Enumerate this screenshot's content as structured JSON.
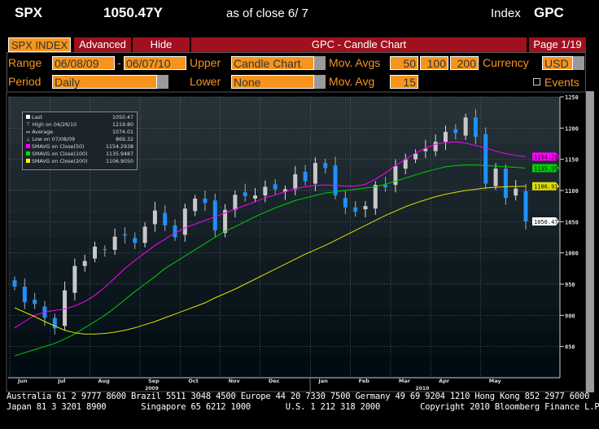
{
  "header": {
    "ticker": "SPX",
    "price": "1050.47Y",
    "as_of": "as of close  6/ 7",
    "index_label": "Index",
    "function": "GPC"
  },
  "tabs": {
    "security": "SPX INDEX",
    "advanced": "Advanced",
    "hide": "Hide",
    "title": "GPC - Candle Chart",
    "page": "Page 1/19"
  },
  "controls": {
    "range_label": "Range",
    "range_start": "06/08/09",
    "range_sep": "-",
    "range_end": "06/07/10",
    "upper_label": "Upper",
    "upper_value": "Candle Chart",
    "mov_avgs_label": "Mov. Avgs",
    "ma1": "50",
    "ma2": "100",
    "ma3": "200",
    "currency_label": "Currency",
    "currency_value": "USD",
    "period_label": "Period",
    "period_value": "Daily",
    "lower_label": "Lower",
    "lower_value": "None",
    "mov_avg_label": "Mov. Avg",
    "mov_avg_value": "15",
    "events_label": "Events"
  },
  "legend": [
    {
      "label": "Last",
      "value": "1050.47",
      "color": "#ffffff"
    },
    {
      "label": "High on 04/26/10",
      "value": "1219.80"
    },
    {
      "label": "Average",
      "value": "1074.01"
    },
    {
      "label": "Low on 07/08/09",
      "value": "869.32"
    },
    {
      "label": "SMAVG on Close(50)",
      "value": "1154.2938",
      "color": "#ff00ff"
    },
    {
      "label": "SMAVG on Close(100)",
      "value": "1135.9487",
      "color": "#00e000"
    },
    {
      "label": "SMAVG on Close(200)",
      "value": "1106.9050",
      "color": "#ffff00"
    }
  ],
  "chart_data": {
    "type": "candlestick",
    "ylim": [
      800,
      1250
    ],
    "yticks": [
      850,
      900,
      950,
      1000,
      1050,
      1100,
      1150,
      1200,
      1250
    ],
    "months": [
      "Jun",
      "Jul",
      "Aug",
      "Sep",
      "Oct",
      "Nov",
      "Dec",
      "Jan",
      "Feb",
      "Mar",
      "Apr",
      "May"
    ],
    "month_week_index": [
      0,
      4,
      8,
      13,
      17,
      21,
      25,
      30,
      34,
      38,
      42,
      47
    ],
    "years": [
      {
        "label": "2009",
        "week": 13
      },
      {
        "label": "2010",
        "week": 40
      }
    ],
    "weekly_close": [
      946,
      921,
      918,
      896,
      879,
      940,
      979,
      987,
      1010,
      1005,
      1026,
      1028,
      1016,
      1042,
      1068,
      1044,
      1025,
      1071,
      1087,
      1080,
      1036,
      1069,
      1093,
      1091,
      1092,
      1106,
      1102,
      1102,
      1126,
      1115,
      1144,
      1136,
      1092,
      1073,
      1066,
      1075,
      1109,
      1105,
      1139,
      1150,
      1159,
      1167,
      1178,
      1194,
      1192,
      1217,
      1186,
      1111,
      1135,
      1088,
      1103,
      1050.47
    ],
    "series": [
      {
        "name": "SMAVG(50)",
        "color": "#ff00ff",
        "tag": "1154.29",
        "values": [
          880,
          890,
          900,
          905,
          908,
          910,
          915,
          922,
          932,
          945,
          960,
          975,
          988,
          1000,
          1012,
          1022,
          1032,
          1040,
          1046,
          1052,
          1058,
          1064,
          1070,
          1076,
          1082,
          1088,
          1093,
          1098,
          1103,
          1106,
          1108,
          1109,
          1108,
          1107,
          1107,
          1110,
          1118,
          1128,
          1140,
          1150,
          1160,
          1168,
          1174,
          1177,
          1178,
          1176,
          1172,
          1168,
          1163,
          1159,
          1156,
          1154.3
        ]
      },
      {
        "name": "SMAVG(100)",
        "color": "#00d000",
        "tag": "1135.95",
        "values": [
          835,
          840,
          845,
          850,
          855,
          862,
          870,
          880,
          890,
          900,
          912,
          925,
          938,
          950,
          962,
          975,
          985,
          995,
          1005,
          1015,
          1025,
          1035,
          1042,
          1050,
          1058,
          1065,
          1072,
          1078,
          1084,
          1088,
          1092,
          1096,
          1098,
          1100,
          1102,
          1104,
          1106,
          1110,
          1115,
          1120,
          1125,
          1130,
          1134,
          1138,
          1140,
          1141,
          1141,
          1140,
          1139,
          1138,
          1137,
          1135.95
        ]
      },
      {
        "name": "SMAVG(200)",
        "color": "#e0e000",
        "tag": "1106.91",
        "values": [
          912,
          905,
          898,
          890,
          883,
          876,
          872,
          870,
          870,
          871,
          873,
          876,
          880,
          885,
          890,
          896,
          902,
          908,
          914,
          920,
          928,
          935,
          942,
          950,
          958,
          966,
          974,
          982,
          990,
          998,
          1005,
          1012,
          1020,
          1028,
          1036,
          1044,
          1052,
          1060,
          1067,
          1074,
          1080,
          1085,
          1090,
          1094,
          1097,
          1100,
          1102,
          1104,
          1105,
          1106,
          1106.5,
          1106.9
        ]
      }
    ],
    "last_tag": "1050.47"
  },
  "footer": {
    "line1": "Australia 61 2 9777 8600 Brazil 5511 3048 4500 Europe 44 20 7330 7500 Germany 49 69 9204 1210 Hong Kong 852 2977 6000",
    "line2": "Japan 81 3 3201 8900       Singapore 65 6212 1000       U.S. 1 212 318 2000        Copyright 2010 Bloomberg Finance L.P."
  }
}
